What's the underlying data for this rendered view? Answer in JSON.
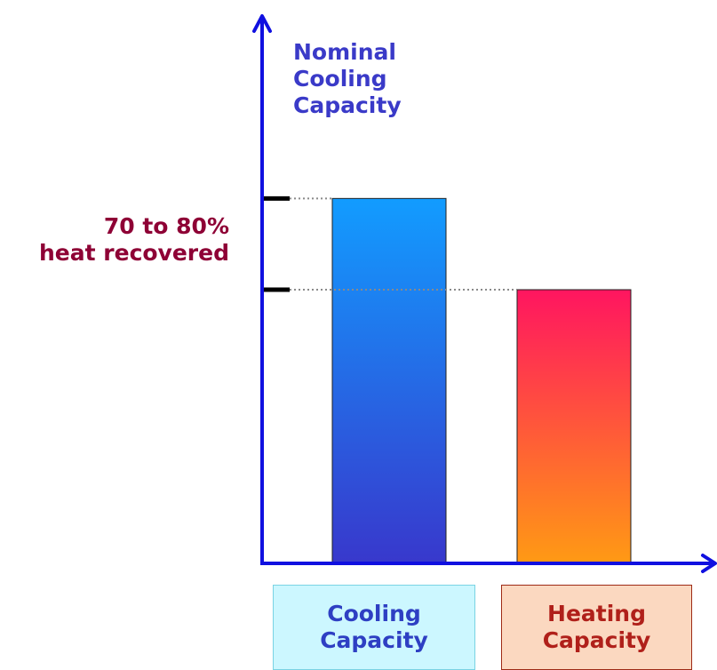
{
  "chart_data": {
    "type": "bar",
    "categories": [
      "Cooling\nCapacity",
      "Heating\nCapacity"
    ],
    "series": [
      {
        "values": [
          100,
          75
        ]
      }
    ],
    "ylabel": "Nominal\nCooling\nCapacity",
    "annotation": "70 to 80%\nheat recovered",
    "ylim": [
      0,
      150
    ],
    "grid": false,
    "colors": {
      "axis": "#1010e0",
      "cooling_top": "#129cff",
      "cooling_bottom": "#3838cc",
      "heating_top": "#ff1560",
      "heating_bottom": "#ff9a14",
      "ylabel": "#3a3ac8",
      "annotation": "#8e0035",
      "cooling_box_bg": "#ccf7ff",
      "cooling_box_border": "#7ad3e3",
      "cooling_box_text": "#2e3fc3",
      "heating_box_bg": "#fbd8c0",
      "heating_box_border": "#9e2a16",
      "heating_box_text": "#b0201a"
    }
  }
}
